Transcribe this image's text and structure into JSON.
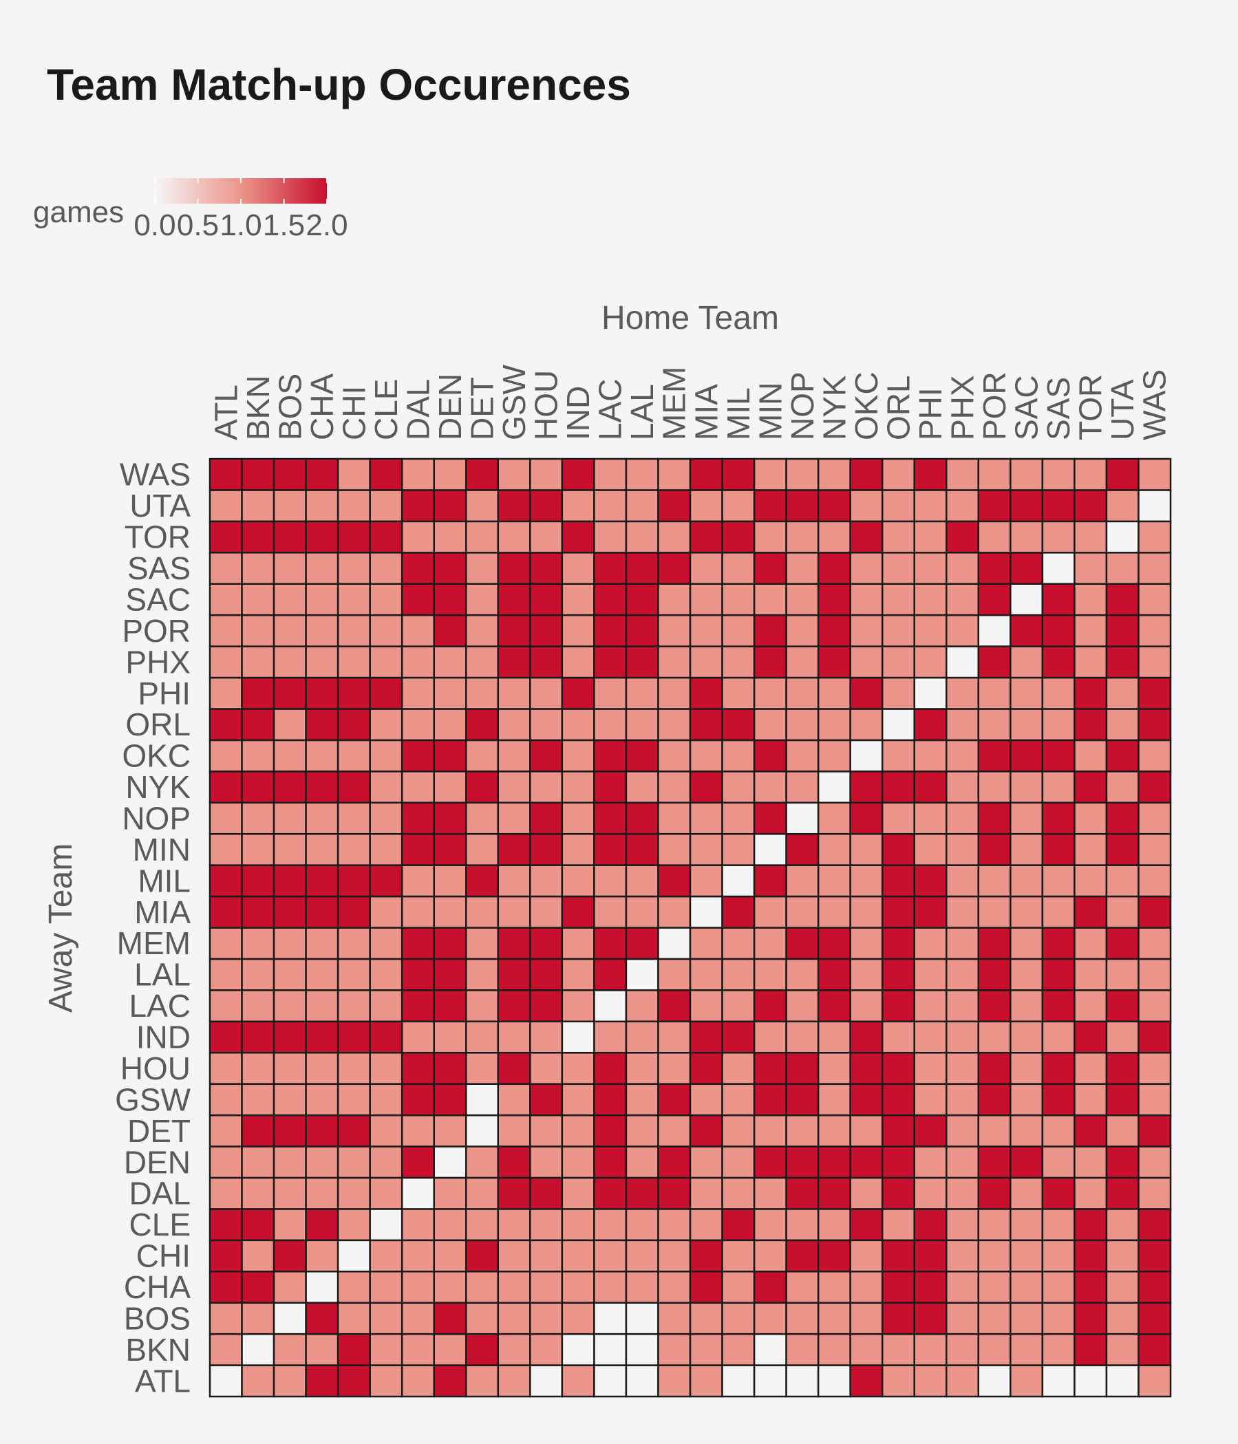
{
  "chart_data": {
    "type": "heatmap",
    "title": "Team Match-up Occurences",
    "xlabel": "Home Team",
    "ylabel": "Away Team",
    "legend": {
      "title": "games",
      "ticks": [
        "0.0",
        "0.5",
        "1.0",
        "1.5",
        "2.0"
      ],
      "range": [
        0,
        2
      ],
      "position": "top-left"
    },
    "colors": {
      "low": "#f5f5f5",
      "mid": "#ec958a",
      "high": "#c8102e",
      "border": "#1a1a1a",
      "background": "#f5f5f5"
    },
    "x_categories": [
      "ATL",
      "BKN",
      "BOS",
      "CHA",
      "CHI",
      "CLE",
      "DAL",
      "DEN",
      "DET",
      "GSW",
      "HOU",
      "IND",
      "LAC",
      "LAL",
      "MEM",
      "MIA",
      "MIL",
      "MIN",
      "NOP",
      "NYK",
      "OKC",
      "ORL",
      "PHI",
      "PHX",
      "POR",
      "SAC",
      "SAS",
      "TOR",
      "UTA",
      "WAS"
    ],
    "y_categories": [
      "ATL",
      "BKN",
      "BOS",
      "CHA",
      "CHI",
      "CLE",
      "DAL",
      "DEN",
      "DET",
      "GSW",
      "HOU",
      "IND",
      "LAC",
      "LAL",
      "MEM",
      "MIA",
      "MIL",
      "MIN",
      "NOP",
      "NYK",
      "OKC",
      "ORL",
      "PHI",
      "PHX",
      "POR",
      "SAC",
      "SAS",
      "TOR",
      "UTA",
      "WAS"
    ],
    "values": [
      "011221121101001100002111010001",
      "101121112110001110111111111212",
      "110211121111001111111221111212",
      "221011111111111212111221111212",
      "212101112111111211221221111212",
      "221210111111111121112121111212",
      "111111011221222111221211212121",
      "111111201211212112222211221121",
      "122221110111211211111221111212",
      "111111220121212112212211212121",
      "111111221211211212212211212121",
      "222222111110111221112111111212",
      "111111221221012112121211212121",
      "111111221221201111121211212111",
      "111111221221220111221211212121",
      "222221111112111021111221111212",
      "222222112111112102111221111111",
      "111111221221221110211211212121",
      "111111221121221112012111212121",
      "222221112111211211102221111212",
      "111111221121221112110111222121",
      "221221112111111221111021111212",
      "122222111112111211112101111212",
      "111111111221221112121110212121",
      "111111121221221112121111022121",
      "111111221221221111121111202121",
      "111111221221222112121111220111",
      "222222111112111221112112111101",
      "111111221221112112221111222210",
      "222212112112111221112121111121"
    ]
  }
}
